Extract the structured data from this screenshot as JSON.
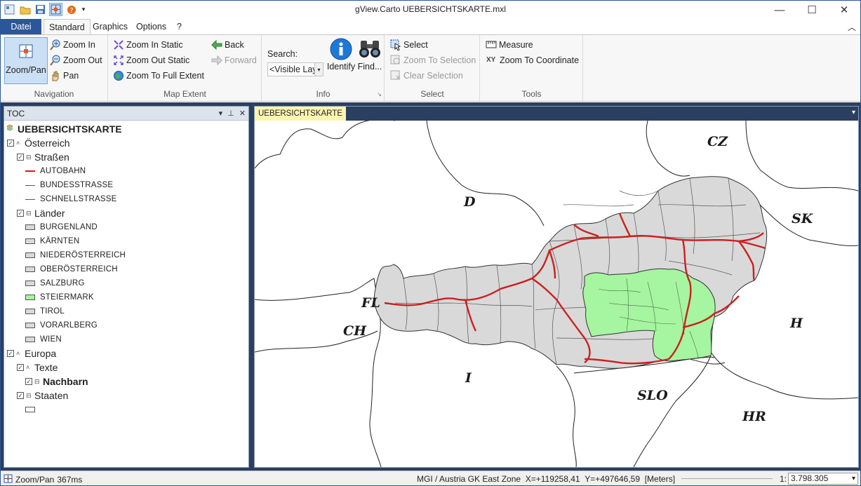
{
  "window": {
    "title": "gView.Carto UEBERSICHTSKARTE.mxl"
  },
  "quick_access": [
    "new-icon",
    "open-folder-icon",
    "save-icon",
    "zoom-pan-icon",
    "help-icon",
    "customize-icon"
  ],
  "tabs": {
    "file": "Datei",
    "standard": "Standard",
    "graphics": "Graphics",
    "options": "Options",
    "help": "?"
  },
  "ribbon": {
    "navigation": {
      "label": "Navigation",
      "zoom_pan": "Zoom/Pan",
      "zoom_in": "Zoom In",
      "zoom_out": "Zoom Out",
      "pan": "Pan"
    },
    "map_extent": {
      "label": "Map Extent",
      "zoom_in_static": "Zoom In Static",
      "zoom_out_static": "Zoom Out Static",
      "zoom_full": "Zoom To Full Extent",
      "back": "Back",
      "forward": "Forward"
    },
    "info": {
      "label": "Info",
      "search_label": "Search:",
      "search_value": "<Visible Lay",
      "identify": "Identify",
      "find": "Find..."
    },
    "select": {
      "label": "Select",
      "select": "Select",
      "zoom_to_selection": "Zoom To Selection",
      "clear_selection": "Clear Selection"
    },
    "tools": {
      "label": "Tools",
      "measure": "Measure",
      "xy": "XY",
      "zoom_to_coordinate": "Zoom To Coordinate"
    }
  },
  "toc": {
    "title": "TOC",
    "root": "UEBERSICHTSKARTE",
    "oesterreich": "Österreich",
    "strassen": "Straßen",
    "autobahn": "AUTOBAHN",
    "bundesstrasse": "BUNDESSTRASSE",
    "schnellstrasse": "SCHNELLSTRASSE",
    "laender": "Länder",
    "burgenland": "BURGENLAND",
    "kaernten": "KÄRNTEN",
    "niederoesterreich": "NIEDERÖSTERREICH",
    "oberoesterreich": "OBERÖSTERREICH",
    "salzburg": "SALZBURG",
    "steiermark": "STEIERMARK",
    "tirol": "TIROL",
    "vorarlberg": "VORARLBERG",
    "wien": "WIEN",
    "europa": "Europa",
    "texte": "Texte",
    "nachbarn": "Nachbarn",
    "staaten": "Staaten"
  },
  "colors": {
    "austria_fill": "#d9d9d9",
    "steiermark_fill": "#a6f5a0",
    "autobahn": "#cc1f1f",
    "accent": "#2b579a"
  },
  "map": {
    "tab": "UEBERSICHTSKARTE",
    "labels": {
      "cz": "CZ",
      "d": "D",
      "sk": "SK",
      "fl": "FL",
      "ch": "CH",
      "h": "H",
      "i": "I",
      "slo": "SLO",
      "hr": "HR"
    }
  },
  "status": {
    "tool": "Zoom/Pan",
    "time": "367ms",
    "crs": "MGI / Austria GK East Zone",
    "x": "X=+119258,41",
    "y": "Y=+497646,59",
    "units": "[Meters]",
    "scale_prefix": "1:",
    "scale": "3.798.305"
  }
}
